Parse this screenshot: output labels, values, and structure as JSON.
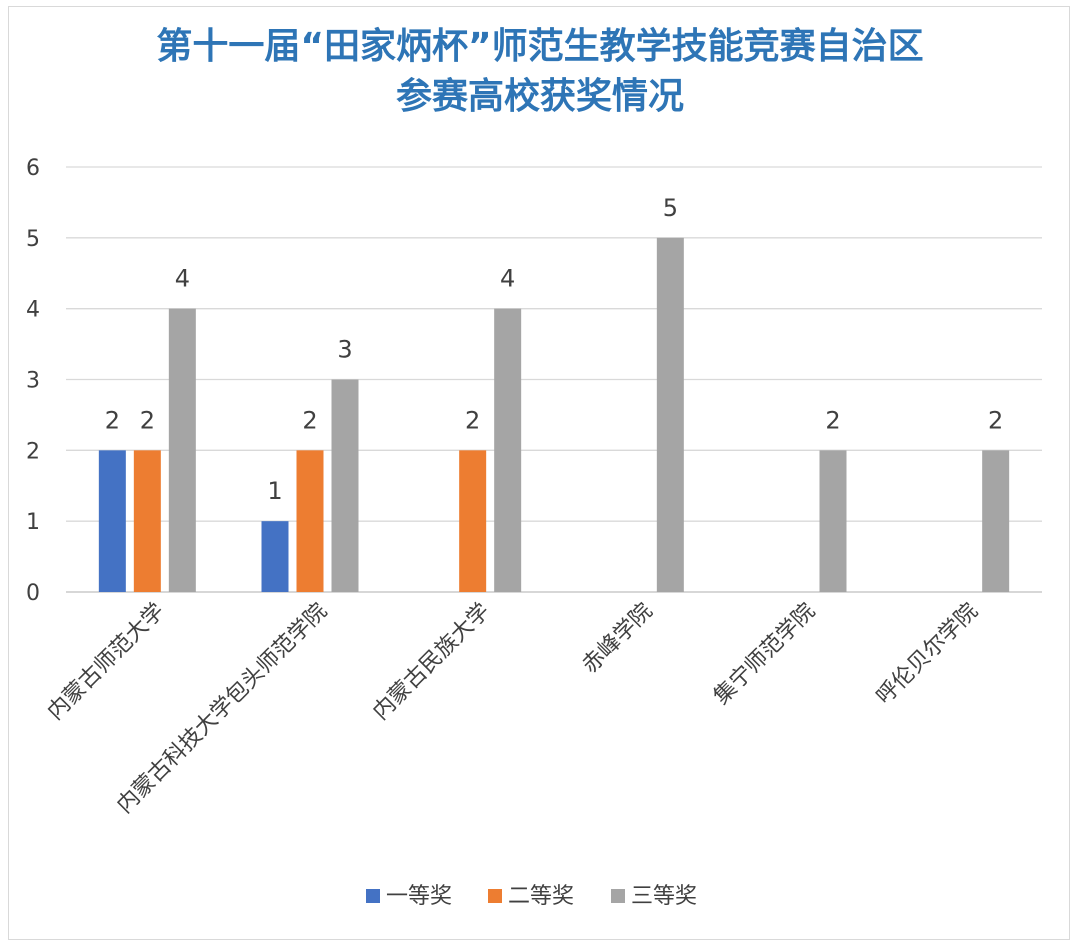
{
  "chart_data": {
    "type": "bar",
    "title_line1": "第十一届“田家炳杯”师范生教学技能竞赛自治区",
    "title_line2": "参赛高校获奖情况",
    "categories": [
      "内蒙古师范大学",
      "内蒙古科技大学包头师范学院",
      "内蒙古民族大学",
      "赤峰学院",
      "集宁师范学院",
      "呼伦贝尔学院"
    ],
    "series": [
      {
        "name": "一等奖",
        "color": "#4472c4",
        "values": [
          2,
          1,
          0,
          0,
          0,
          0
        ]
      },
      {
        "name": "二等奖",
        "color": "#ed7d31",
        "values": [
          2,
          2,
          2,
          0,
          0,
          0
        ]
      },
      {
        "name": "三等奖",
        "color": "#a5a5a5",
        "values": [
          4,
          3,
          4,
          5,
          2,
          2
        ]
      }
    ],
    "ylim": [
      0,
      6
    ],
    "yticks": [
      0,
      1,
      2,
      3,
      4,
      5,
      6
    ],
    "grid": true,
    "legend_position": "bottom",
    "title_color": "#2e75b6"
  }
}
